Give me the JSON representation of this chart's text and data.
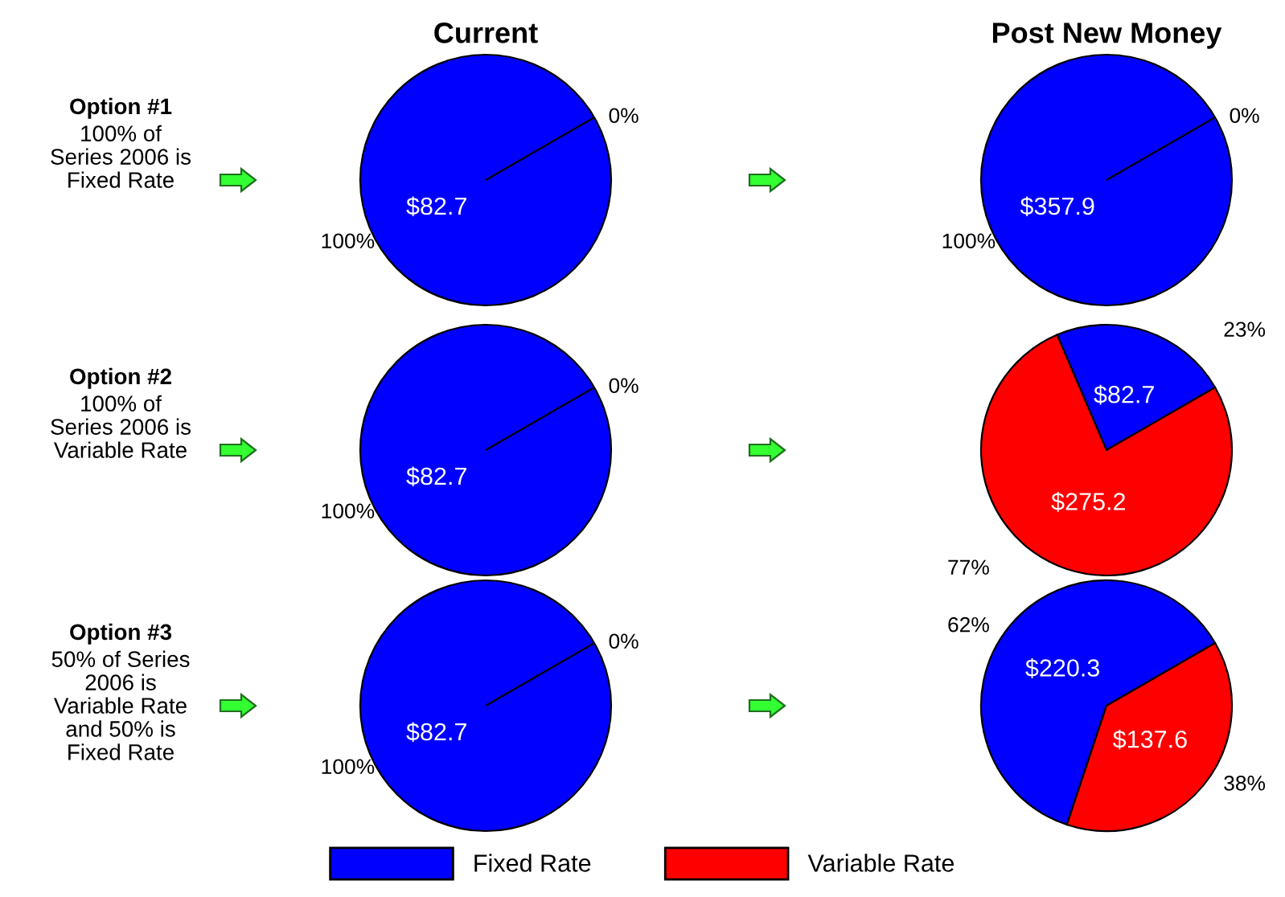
{
  "chart_data": [
    {
      "type": "other",
      "title": "Option #1",
      "annotations": [
        "100% of\nSeries 2006 is\nFixed Rate"
      ]
    },
    {
      "type": "pie",
      "title": "Current",
      "categories": [
        null,
        null
      ],
      "values": [
        82.7,
        0
      ],
      "colors": [
        "#0000ff",
        "#ff0000"
      ],
      "value_labels": [
        "$82.7",
        null
      ],
      "annotations": [
        "100%",
        "0%"
      ]
    },
    {
      "type": "pie",
      "title": "Post New Money",
      "categories": [
        null,
        null
      ],
      "values": [
        357.9,
        0
      ],
      "colors": [
        "#0000ff",
        "#ff0000"
      ],
      "value_labels": [
        "$357.9",
        null
      ],
      "annotations": [
        "100%",
        "0%"
      ]
    },
    {
      "type": "other",
      "title": "Option #2",
      "annotations": [
        "100% of\nSeries 2006 is\nVariable Rate"
      ]
    },
    {
      "type": "pie",
      "categories": [
        null,
        null
      ],
      "values": [
        82.7,
        0
      ],
      "colors": [
        "#0000ff",
        "#ff0000"
      ],
      "value_labels": [
        "$82.7",
        null
      ],
      "annotations": [
        "100%",
        "0%"
      ]
    },
    {
      "type": "pie",
      "categories": [
        null,
        null
      ],
      "values": [
        82.7,
        275.2
      ],
      "colors": [
        "#0000ff",
        "#ff0000"
      ],
      "value_labels": [
        "$82.7",
        "$275.2"
      ],
      "annotations": [
        "23%",
        "77%"
      ]
    },
    {
      "type": "other",
      "title": "Option #3",
      "annotations": [
        "50% of Series\n2006 is\nVariable Rate\nand 50% is\nFixed Rate"
      ]
    },
    {
      "type": "pie",
      "categories": [
        null,
        null
      ],
      "values": [
        82.7,
        0
      ],
      "colors": [
        "#0000ff",
        "#ff0000"
      ],
      "value_labels": [
        "$82.7",
        null
      ],
      "annotations": [
        "100%",
        "0%"
      ]
    },
    {
      "type": "pie",
      "categories": [
        "Fixed Rate",
        "Variable Rate"
      ],
      "values": [
        220.3,
        137.6
      ],
      "colors": [
        "#0000ff",
        "#ff0000"
      ],
      "value_labels": [
        "$220.3",
        "$137.6"
      ],
      "annotations": [
        "62%",
        "38%"
      ],
      "legend": "bottom"
    }
  ]
}
